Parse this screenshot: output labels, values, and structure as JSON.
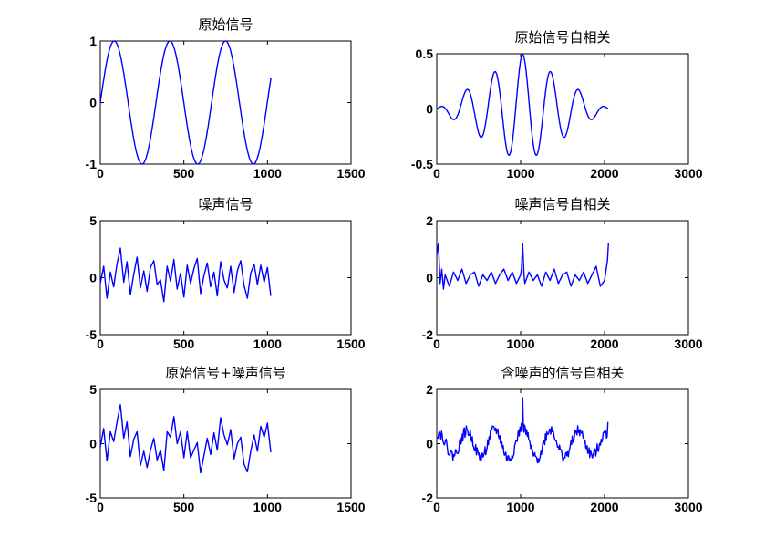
{
  "figure": {
    "background": "#ffffff",
    "line_color": "#0000ff"
  },
  "chart_data": [
    {
      "type": "line",
      "title": "原始信号",
      "xlim": [
        0,
        1500
      ],
      "ylim": [
        -1,
        1
      ],
      "xticks": [
        0,
        500,
        1000,
        1500
      ],
      "yticks": [
        -1,
        0,
        1
      ],
      "xticklabels": [
        "0",
        "500",
        "1000",
        "1500"
      ],
      "yticklabels": [
        "-1",
        "0",
        "1"
      ],
      "series": [
        {
          "color": "#0000ff",
          "signal": "sinusoid",
          "n_points": 1024,
          "period": 333,
          "amplitude": 1,
          "phase_start": 0,
          "x_start": 0,
          "x_end": 1023,
          "y_end": 0.4
        }
      ]
    },
    {
      "type": "line",
      "title": "原始信号自相关",
      "xlim": [
        0,
        3000
      ],
      "ylim": [
        -0.5,
        0.5
      ],
      "xticks": [
        0,
        1000,
        2000,
        3000
      ],
      "yticks": [
        -0.5,
        0,
        0.5
      ],
      "xticklabels": [
        "0",
        "1000",
        "2000",
        "3000"
      ],
      "yticklabels": [
        "-0.5",
        "0",
        "0.5"
      ],
      "series": [
        {
          "color": "#0000ff",
          "signal": "autocorrelation-of-sinusoid",
          "n_points": 2047,
          "period": 333,
          "peak": 0.5,
          "center": 1024,
          "x_start": 0,
          "x_end": 2047
        }
      ]
    },
    {
      "type": "line",
      "title": "噪声信号",
      "xlim": [
        0,
        1500
      ],
      "ylim": [
        -5,
        5
      ],
      "xticks": [
        0,
        500,
        1000,
        1500
      ],
      "yticks": [
        -5,
        0,
        5
      ],
      "xticklabels": [
        "0",
        "500",
        "1000",
        "1500"
      ],
      "yticklabels": [
        "-5",
        "0",
        "5"
      ],
      "series": [
        {
          "color": "#0000ff",
          "signal": "noise",
          "x": [
            0,
            20,
            40,
            60,
            80,
            100,
            120,
            140,
            160,
            180,
            200,
            220,
            240,
            260,
            280,
            300,
            320,
            340,
            360,
            380,
            400,
            420,
            440,
            460,
            480,
            500,
            520,
            540,
            560,
            580,
            600,
            620,
            640,
            660,
            680,
            700,
            720,
            740,
            760,
            780,
            800,
            820,
            840,
            860,
            880,
            900,
            920,
            940,
            960,
            980,
            1000,
            1020
          ],
          "y": [
            -0.5,
            1.0,
            -1.8,
            0.5,
            -0.8,
            1.2,
            2.6,
            -0.4,
            1.4,
            -1.5,
            0.3,
            1.8,
            -0.9,
            0.6,
            -1.2,
            0.9,
            1.5,
            -0.6,
            -0.2,
            -2.1,
            1.0,
            -0.3,
            1.6,
            -1.0,
            0.4,
            -1.7,
            1.1,
            -0.5,
            0.8,
            1.7,
            -1.4,
            0.2,
            1.3,
            -0.8,
            0.5,
            -1.6,
            1.4,
            -0.2,
            -0.9,
            1.0,
            -1.3,
            0.6,
            1.5,
            -0.7,
            -1.8,
            0.4,
            1.2,
            -0.6,
            1.1,
            -0.4,
            0.9,
            -1.6
          ]
        }
      ]
    },
    {
      "type": "line",
      "title": "噪声信号自相关",
      "xlim": [
        0,
        3000
      ],
      "ylim": [
        -2,
        2
      ],
      "xticks": [
        0,
        1000,
        2000,
        3000
      ],
      "yticks": [
        -2,
        0,
        2
      ],
      "xticklabels": [
        "0",
        "1000",
        "2000",
        "3000"
      ],
      "yticklabels": [
        "-2",
        "0",
        "2"
      ],
      "series": [
        {
          "color": "#0000ff",
          "signal": "autocorrelation-of-noise",
          "x": [
            0,
            20,
            40,
            60,
            80,
            100,
            150,
            200,
            250,
            300,
            350,
            400,
            450,
            500,
            550,
            600,
            650,
            700,
            750,
            800,
            850,
            900,
            950,
            1000,
            1010,
            1024,
            1040,
            1050,
            1100,
            1150,
            1200,
            1250,
            1300,
            1350,
            1400,
            1450,
            1500,
            1550,
            1600,
            1650,
            1700,
            1750,
            1800,
            1850,
            1900,
            1950,
            2000,
            2020,
            2035,
            2047
          ],
          "y": [
            0.8,
            1.2,
            -0.2,
            0.3,
            -0.4,
            0.1,
            -0.3,
            0.2,
            -0.1,
            0.3,
            -0.2,
            0.1,
            0.2,
            -0.3,
            0.1,
            -0.1,
            0.2,
            -0.2,
            0.1,
            0.3,
            -0.1,
            0.2,
            -0.2,
            0.1,
            0.3,
            1.2,
            0.1,
            -0.2,
            0.2,
            -0.1,
            0.1,
            -0.3,
            0.2,
            -0.1,
            0.3,
            -0.2,
            0.1,
            0.2,
            -0.3,
            0.1,
            -0.1,
            0.2,
            -0.2,
            0.1,
            0.4,
            -0.3,
            -0.1,
            0.3,
            0.6,
            1.2
          ]
        }
      ]
    },
    {
      "type": "line",
      "title": "原始信号+噪声信号",
      "xlim": [
        0,
        1500
      ],
      "ylim": [
        -5,
        5
      ],
      "xticks": [
        0,
        500,
        1000,
        1500
      ],
      "yticks": [
        -5,
        0,
        5
      ],
      "xticklabels": [
        "0",
        "500",
        "1000",
        "1500"
      ],
      "yticklabels": [
        "-5",
        "0",
        "5"
      ],
      "series": [
        {
          "color": "#0000ff",
          "signal": "sinusoid-plus-noise",
          "x": [
            0,
            20,
            40,
            60,
            80,
            100,
            120,
            140,
            160,
            180,
            200,
            220,
            240,
            260,
            280,
            300,
            320,
            340,
            360,
            380,
            400,
            420,
            440,
            460,
            480,
            500,
            520,
            540,
            560,
            580,
            600,
            620,
            640,
            660,
            680,
            700,
            720,
            740,
            760,
            780,
            800,
            820,
            840,
            860,
            880,
            900,
            920,
            940,
            960,
            980,
            1000,
            1020
          ],
          "y": [
            -0.3,
            1.4,
            -1.6,
            1.1,
            0.2,
            2.0,
            3.6,
            0.5,
            2.0,
            -1.2,
            0.4,
            1.1,
            -2.0,
            -0.7,
            -2.2,
            -0.6,
            0.5,
            -1.5,
            -0.6,
            -2.5,
            1.1,
            0.6,
            2.5,
            0.0,
            1.1,
            -1.3,
            1.1,
            -1.3,
            -0.6,
            0.1,
            -2.7,
            -1.1,
            0.5,
            -1.0,
            1.0,
            -0.6,
            2.4,
            0.8,
            -0.1,
            1.3,
            -1.4,
            0.0,
            0.6,
            -1.9,
            -2.6,
            -0.7,
            0.8,
            -0.7,
            1.6,
            0.6,
            1.9,
            -0.8
          ]
        }
      ]
    },
    {
      "type": "line",
      "title": "含噪声的信号自相关",
      "xlim": [
        0,
        3000
      ],
      "ylim": [
        -2,
        2
      ],
      "xticks": [
        0,
        1000,
        2000,
        3000
      ],
      "yticks": [
        -2,
        0,
        2
      ],
      "xticklabels": [
        "0",
        "1000",
        "2000",
        "3000"
      ],
      "yticklabels": [
        "-2",
        "0",
        "2"
      ],
      "series": [
        {
          "color": "#0000ff",
          "signal": "autocorrelation-of-noisy-sinusoid",
          "n_points": 2047,
          "period": 333,
          "peak": 0.6,
          "spike_center": 1.7,
          "spike_end": 0.8,
          "noise_amplitude": 0.2,
          "center": 1024,
          "x_start": 0,
          "x_end": 2047
        }
      ]
    }
  ]
}
